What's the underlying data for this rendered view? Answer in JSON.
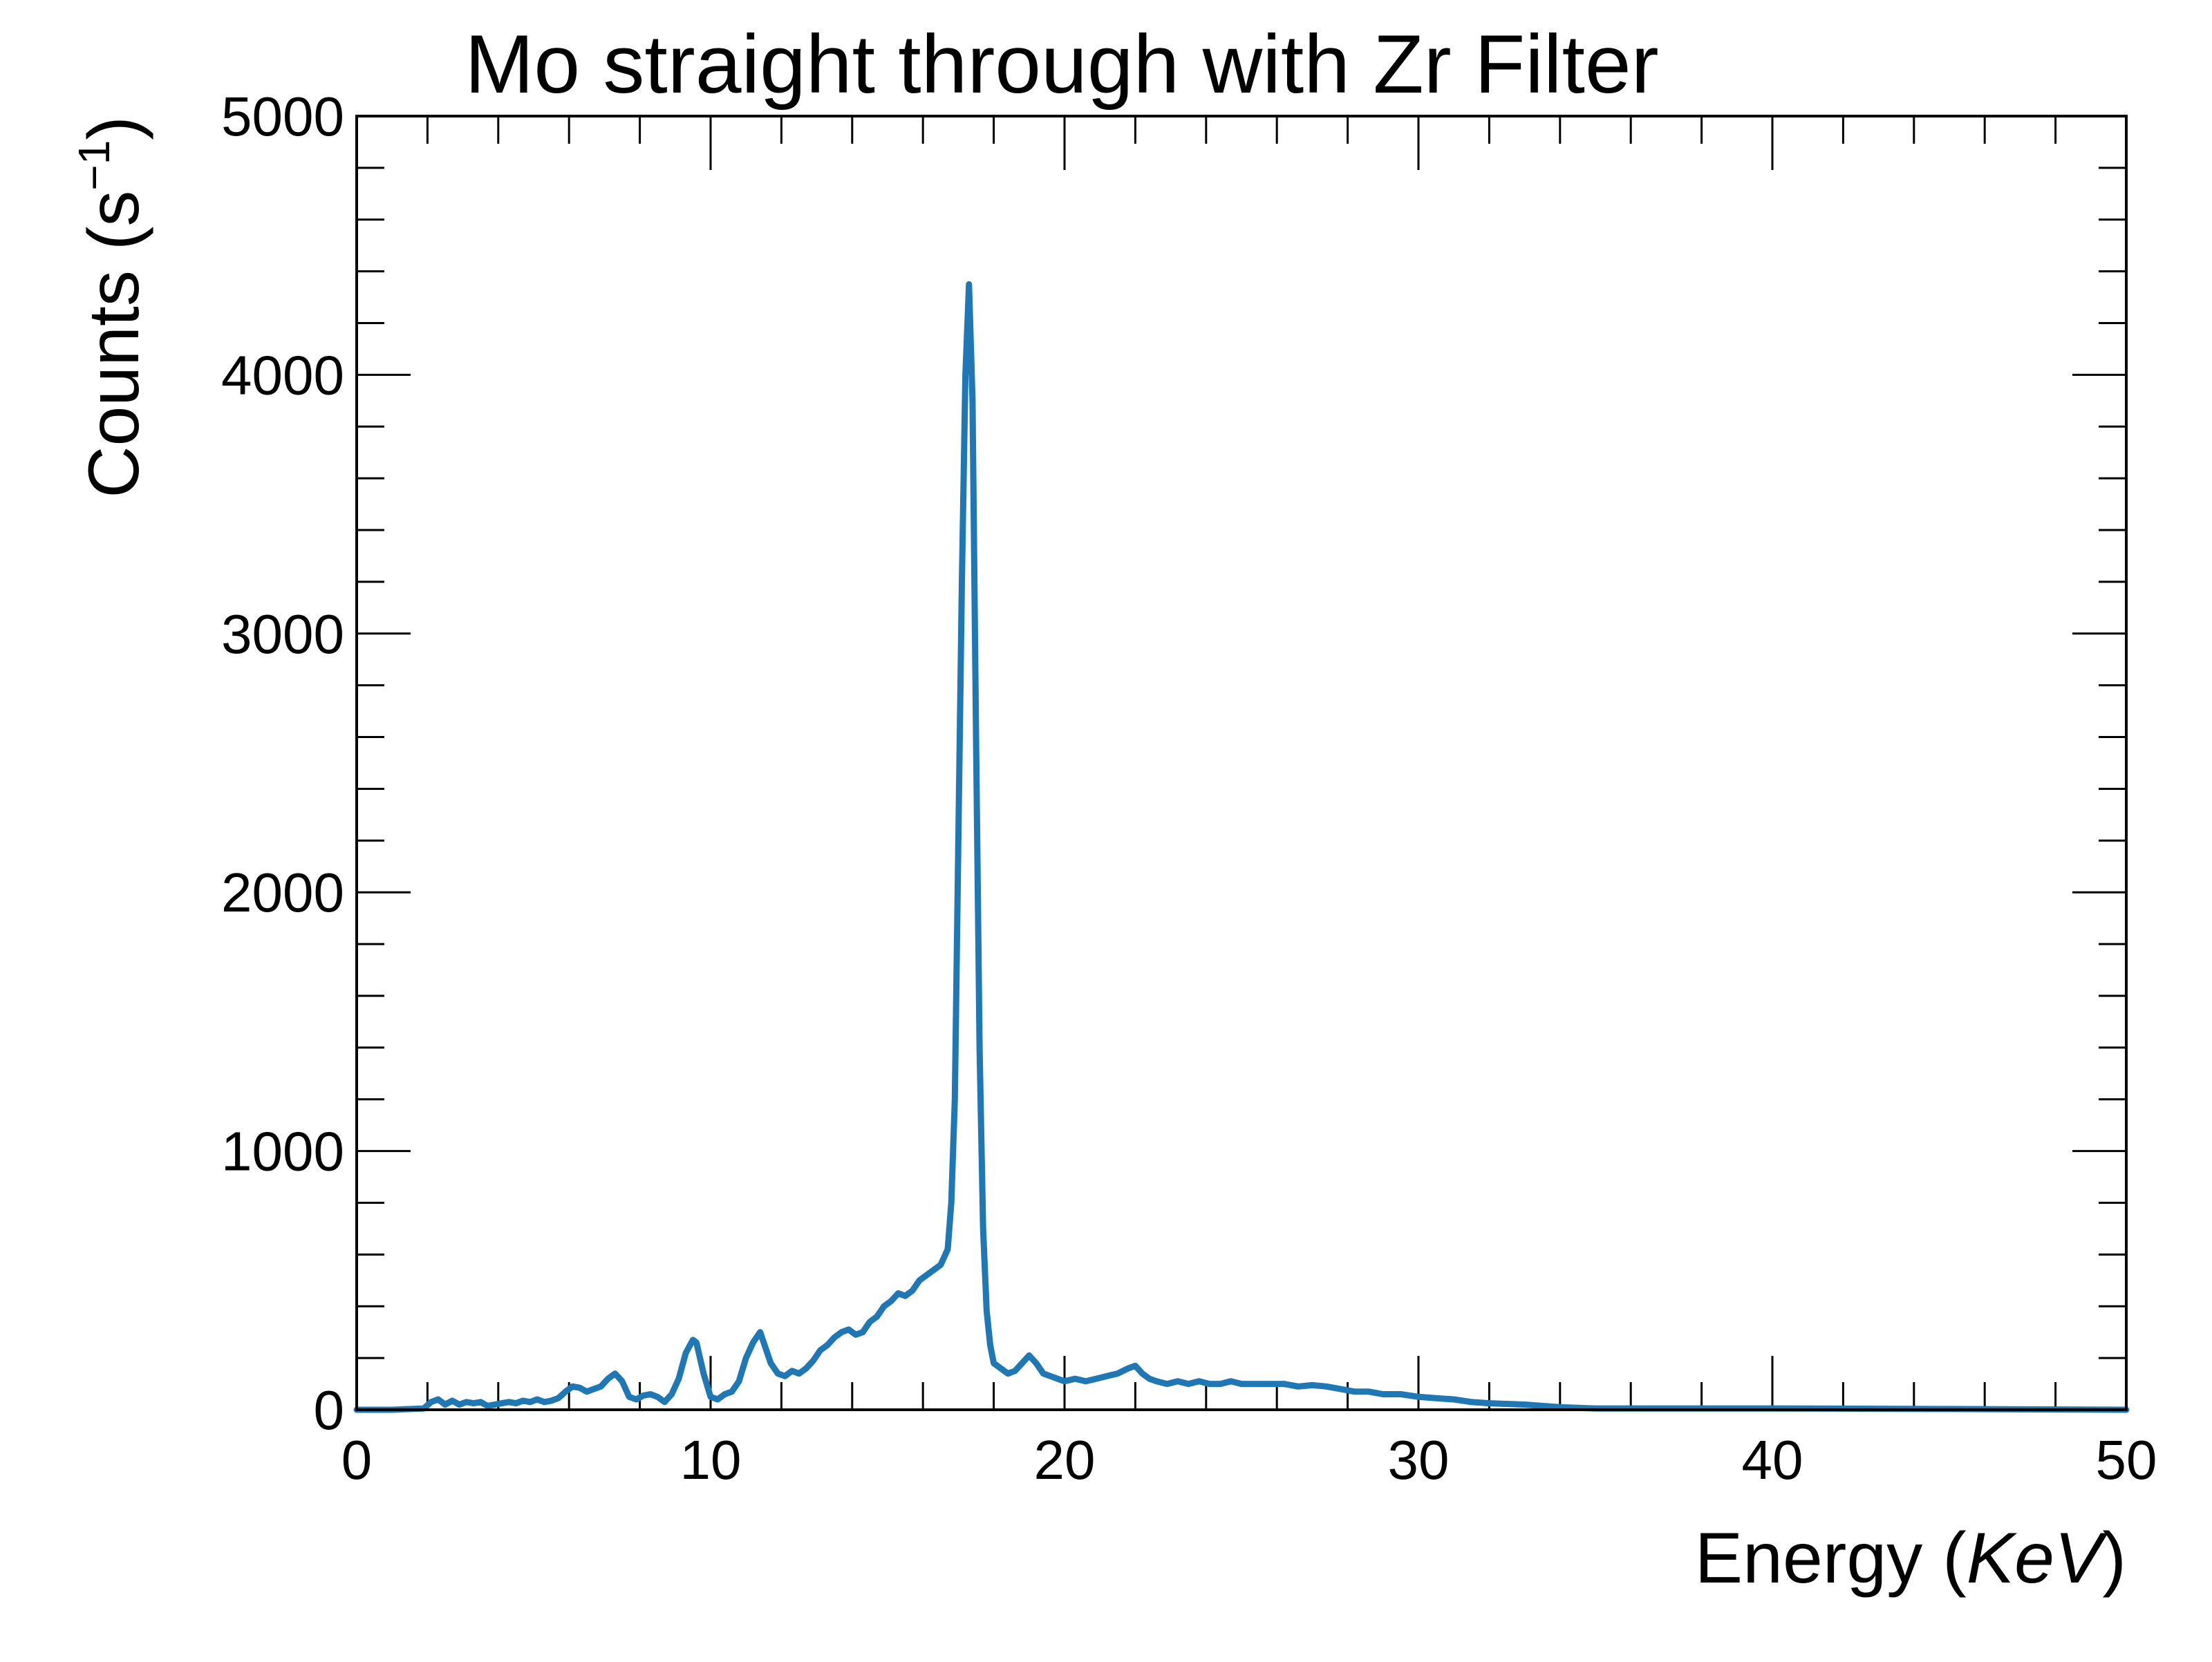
{
  "chart_data": {
    "type": "line",
    "title": "Mo straight through with Zr Filter",
    "xlabel_prefix": "Energy (",
    "xlabel_unit": "KeV",
    "xlabel_suffix": ")",
    "ylabel_prefix": "Counts (s",
    "ylabel_exponent": "−1",
    "ylabel_suffix": ")",
    "xlim": [
      0,
      50
    ],
    "ylim": [
      0,
      5000
    ],
    "x_major_ticks": [
      0,
      10,
      20,
      30,
      40,
      50
    ],
    "x_tick_labels": [
      "0",
      "10",
      "20",
      "30",
      "40",
      "50"
    ],
    "x_minor_step": 2,
    "y_major_ticks": [
      0,
      1000,
      2000,
      3000,
      4000,
      5000
    ],
    "y_tick_labels": [
      "0",
      "1000",
      "2000",
      "3000",
      "4000",
      "5000"
    ],
    "y_minor_step": 200,
    "grid": false,
    "legend": "none",
    "series_color": "#1f77b4",
    "series": [
      {
        "x": [
          0,
          1.0,
          1.9,
          2.1,
          2.3,
          2.5,
          2.7,
          2.9,
          3.1,
          3.3,
          3.5,
          3.7,
          3.9,
          4.1,
          4.3,
          4.5,
          4.7,
          4.9,
          5.1,
          5.3,
          5.5,
          5.7,
          5.9,
          6.1,
          6.3,
          6.5,
          6.7,
          6.9,
          7.1,
          7.3,
          7.5,
          7.7,
          7.9,
          8.1,
          8.3,
          8.5,
          8.7,
          8.9,
          9.1,
          9.3,
          9.5,
          9.6,
          9.8,
          10.0,
          10.2,
          10.4,
          10.6,
          10.8,
          11.0,
          11.2,
          11.4,
          11.5,
          11.7,
          11.9,
          12.1,
          12.3,
          12.5,
          12.7,
          12.9,
          13.1,
          13.3,
          13.5,
          13.7,
          13.9,
          14.1,
          14.3,
          14.5,
          14.7,
          14.9,
          15.1,
          15.3,
          15.5,
          15.7,
          15.9,
          16.1,
          16.3,
          16.5,
          16.7,
          16.8,
          16.9,
          17.0,
          17.1,
          17.2,
          17.3,
          17.4,
          17.5,
          17.6,
          17.7,
          17.8,
          17.9,
          18.0,
          18.2,
          18.4,
          18.6,
          18.8,
          19.0,
          19.2,
          19.4,
          19.6,
          19.8,
          20.0,
          20.3,
          20.6,
          20.9,
          21.2,
          21.5,
          21.8,
          22.0,
          22.2,
          22.4,
          22.6,
          22.9,
          23.2,
          23.5,
          23.8,
          24.1,
          24.4,
          24.7,
          25.0,
          25.4,
          25.8,
          26.2,
          26.6,
          27.0,
          27.4,
          27.8,
          28.2,
          28.6,
          29.0,
          29.5,
          30.0,
          30.5,
          31.0,
          31.5,
          32.0,
          33.0,
          34.0,
          35.0,
          37.0,
          40.0,
          45.0,
          50.0
        ],
        "y": [
          0,
          0,
          5,
          30,
          40,
          20,
          35,
          20,
          30,
          25,
          30,
          15,
          20,
          25,
          30,
          25,
          35,
          30,
          40,
          30,
          35,
          45,
          70,
          90,
          85,
          70,
          80,
          90,
          120,
          140,
          110,
          50,
          40,
          55,
          60,
          50,
          30,
          60,
          120,
          220,
          270,
          260,
          140,
          50,
          40,
          60,
          70,
          110,
          200,
          260,
          300,
          260,
          180,
          140,
          130,
          150,
          140,
          160,
          190,
          230,
          250,
          280,
          300,
          310,
          290,
          300,
          340,
          360,
          400,
          420,
          450,
          440,
          460,
          500,
          520,
          540,
          560,
          620,
          800,
          1200,
          2200,
          3200,
          4000,
          4350,
          3900,
          2600,
          1400,
          700,
          380,
          250,
          180,
          160,
          140,
          150,
          180,
          210,
          180,
          140,
          130,
          120,
          110,
          120,
          110,
          120,
          130,
          140,
          160,
          170,
          140,
          120,
          110,
          100,
          110,
          100,
          110,
          100,
          100,
          110,
          100,
          100,
          100,
          100,
          90,
          95,
          90,
          80,
          70,
          70,
          60,
          60,
          50,
          45,
          40,
          30,
          25,
          20,
          10,
          5,
          5,
          5,
          3,
          0
        ]
      }
    ]
  }
}
